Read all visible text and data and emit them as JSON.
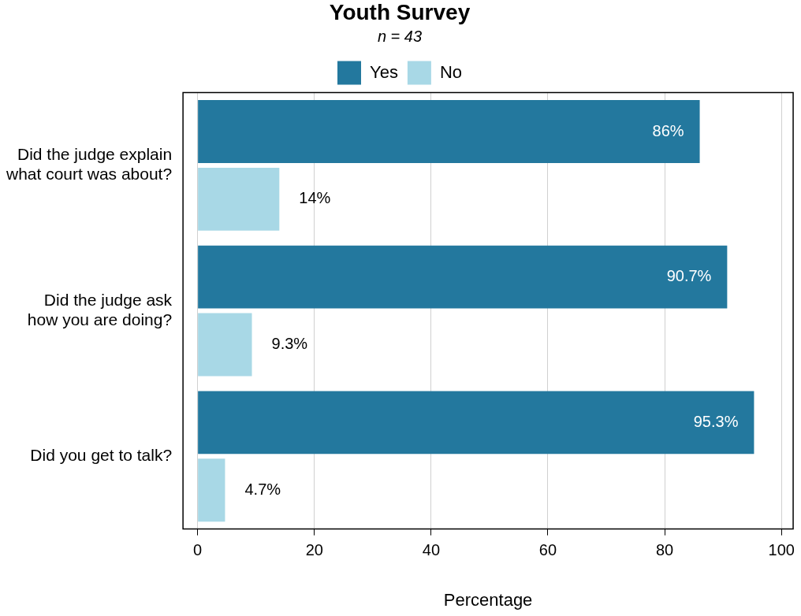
{
  "chart_data": {
    "type": "bar",
    "orientation": "horizontal",
    "title": "Youth Survey",
    "subtitle": "n = 43",
    "xlabel": "Percentage",
    "categories": [
      "Did the judge explain\nwhat court was about?",
      "Did the judge ask\nhow you are doing?",
      "Did you get to talk?"
    ],
    "series": [
      {
        "name": "Yes",
        "color": "#23789e",
        "values": [
          86,
          90.7,
          95.3
        ],
        "value_labels": [
          "86%",
          "90.7%",
          "95.3%"
        ]
      },
      {
        "name": "No",
        "color": "#a8d8e6",
        "values": [
          14,
          9.3,
          4.7
        ],
        "value_labels": [
          "14%",
          "9.3%",
          "4.7%"
        ]
      }
    ],
    "xlim": [
      -2.5,
      102
    ],
    "xticks": [
      0,
      20,
      40,
      60,
      80,
      100
    ],
    "grid": "x",
    "legend": "top"
  }
}
